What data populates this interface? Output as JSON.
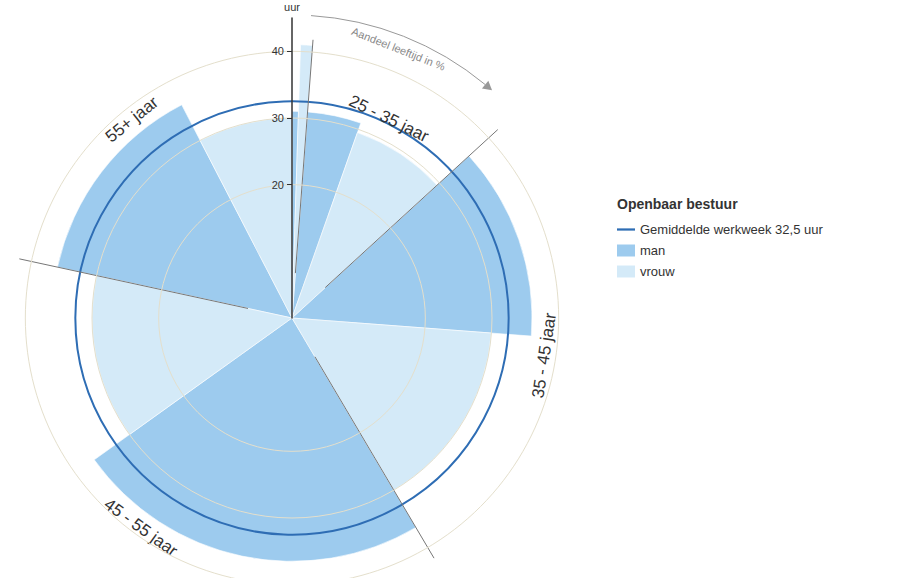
{
  "chart_data": {
    "type": "polar_bar",
    "title": "Openbaar bestuur",
    "radial_axis_label": "uur",
    "angle_axis_label": "Aandeel leeftijd in %",
    "categories": [
      null,
      "25 - 35 jaar",
      "35 - 45 jaar",
      "45 - 55 jaar",
      "55+ jaar"
    ],
    "series": [
      {
        "name": "man",
        "color": "#9dcbee",
        "values": [
          31,
          31,
          36,
          36.5,
          36
        ],
        "shares": [
          0.5,
          4.2,
          13,
          23.6,
          14
        ]
      },
      {
        "name": "vrouw",
        "color": "#d4eaf8",
        "values": [
          41,
          29.5,
          30,
          30,
          30
        ],
        "shares": [
          0.7,
          7.8,
          15.3,
          13.3,
          7.6
        ]
      }
    ],
    "average": {
      "label": "Gemiddelde werkweek 32,5 uur",
      "value": 32.5,
      "color": "#2e6db4"
    },
    "xlim": [
      0,
      100
    ],
    "ylim": [
      0,
      45
    ],
    "yticks": [
      20,
      30,
      40
    ],
    "grid": true,
    "legend": "right",
    "tick_labels": "y"
  }
}
